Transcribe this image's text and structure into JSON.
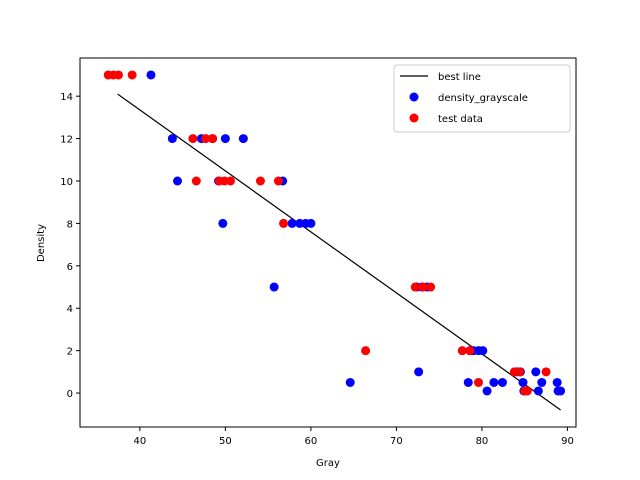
{
  "chart_data": {
    "type": "scatter",
    "title": "",
    "xlabel": "Gray",
    "ylabel": "Density",
    "xlim": [
      33,
      91
    ],
    "ylim": [
      -1.6,
      15.8
    ],
    "xticks": [
      40,
      50,
      60,
      70,
      80,
      90
    ],
    "yticks": [
      0,
      2,
      4,
      6,
      8,
      10,
      12,
      14
    ],
    "grid": false,
    "legend_position": "top-right",
    "series": [
      {
        "name": "best line",
        "kind": "line",
        "color": "#000000",
        "x": [
          37.4,
          89.2
        ],
        "y": [
          14.1,
          -0.8
        ]
      },
      {
        "name": "density_grayscale",
        "kind": "scatter",
        "color": "#0000ff",
        "x": [
          41.3,
          43.8,
          44.4,
          47.2,
          48.5,
          50.0,
          52.1,
          49.2,
          56.7,
          49.7,
          57.8,
          58.7,
          59.4,
          60.0,
          55.7,
          72.4,
          73.0,
          73.6,
          64.6,
          72.6,
          78.6,
          79.0,
          79.6,
          80.1,
          78.4,
          80.6,
          81.4,
          82.4,
          84.1,
          84.5,
          84.8,
          86.3,
          86.6,
          87.0,
          84.9,
          88.9,
          89.2,
          88.8
        ],
        "y": [
          15.0,
          12.0,
          10.0,
          12.0,
          12.0,
          12.0,
          12.0,
          10.0,
          10.0,
          8.0,
          8.0,
          8.0,
          8.0,
          8.0,
          5.0,
          5.0,
          5.0,
          5.0,
          0.5,
          1.0,
          2.0,
          2.0,
          2.0,
          2.0,
          0.5,
          0.1,
          0.5,
          0.5,
          1.0,
          1.0,
          0.5,
          1.0,
          0.1,
          0.5,
          0.1,
          0.1,
          0.1,
          0.5
        ]
      },
      {
        "name": "test data",
        "kind": "scatter",
        "color": "#ff0000",
        "x": [
          36.3,
          36.9,
          37.5,
          39.1,
          46.2,
          47.7,
          48.5,
          46.6,
          49.3,
          49.9,
          50.6,
          54.1,
          56.2,
          56.8,
          72.2,
          73.1,
          74.0,
          66.4,
          77.7,
          78.6,
          79.6,
          83.8,
          84.4,
          85.0,
          85.3,
          87.5
        ],
        "y": [
          15.0,
          15.0,
          15.0,
          15.0,
          12.0,
          12.0,
          12.0,
          10.0,
          10.0,
          10.0,
          10.0,
          10.0,
          10.0,
          8.0,
          5.0,
          5.0,
          5.0,
          2.0,
          2.0,
          2.0,
          0.5,
          1.0,
          1.0,
          0.1,
          0.1,
          1.0
        ]
      }
    ]
  }
}
